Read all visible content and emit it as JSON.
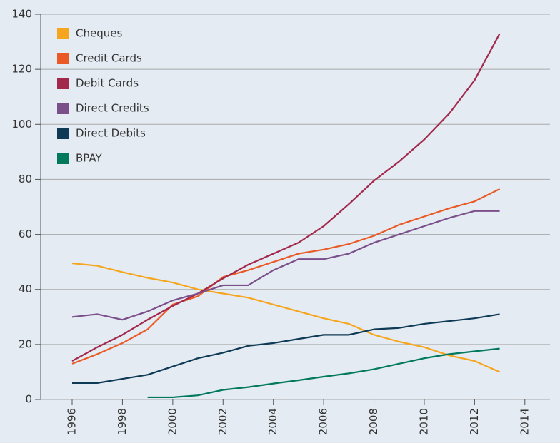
{
  "chart_data": {
    "type": "line",
    "x": [
      1996,
      1997,
      1998,
      1999,
      2000,
      2001,
      2002,
      2003,
      2004,
      2005,
      2006,
      2007,
      2008,
      2009,
      2010,
      2011,
      2012,
      2013
    ],
    "series": [
      {
        "name": "Cheques",
        "color": "#f6a61e",
        "values": [
          49.5,
          48.6,
          46.3,
          44.2,
          42.5,
          40,
          38.5,
          37,
          34.5,
          32,
          29.5,
          27.5,
          23.5,
          21,
          19,
          16,
          14,
          10
        ]
      },
      {
        "name": "Credit Cards",
        "color": "#ea5a26",
        "values": [
          13,
          16.5,
          20.5,
          25.5,
          34.5,
          37.5,
          44.5,
          47,
          50,
          53,
          54.5,
          56.5,
          59.5,
          63.5,
          66.5,
          69.5,
          72,
          76.5
        ]
      },
      {
        "name": "Debit Cards",
        "color": "#a2284c",
        "values": [
          14,
          19,
          23.5,
          29,
          34,
          38.5,
          44,
          49,
          53,
          57,
          63,
          71,
          79.5,
          86.5,
          94.5,
          104,
          116,
          133
        ]
      },
      {
        "name": "Direct Credits",
        "color": "#7b4f8a",
        "values": [
          30,
          31,
          29,
          32,
          36,
          38.5,
          41.5,
          41.5,
          47,
          51,
          51,
          53,
          57,
          60,
          63,
          66,
          68.5,
          68.5
        ]
      },
      {
        "name": "Direct Debits",
        "color": "#0e3a55",
        "values": [
          6,
          6,
          7.5,
          9,
          12,
          15,
          17,
          19.5,
          20.5,
          22,
          23.5,
          23.5,
          25.5,
          26,
          27.5,
          28.5,
          29.5,
          31
        ]
      },
      {
        "name": "BPAY",
        "color": "#00795d",
        "values": [
          null,
          null,
          null,
          0.8,
          0.8,
          1.5,
          3.5,
          4.5,
          5.8,
          7,
          8.3,
          9.5,
          11,
          13,
          15,
          16.5,
          17.5,
          18.5
        ]
      }
    ],
    "xlim": [
      1994.75,
      2015
    ],
    "xticks": [
      1996,
      1998,
      2000,
      2002,
      2004,
      2006,
      2008,
      2010,
      2012,
      2014
    ],
    "ylim": [
      0,
      140
    ],
    "yticks": [
      0,
      20,
      40,
      60,
      80,
      100,
      120,
      140
    ],
    "grid": true,
    "legend": "upper-left"
  }
}
